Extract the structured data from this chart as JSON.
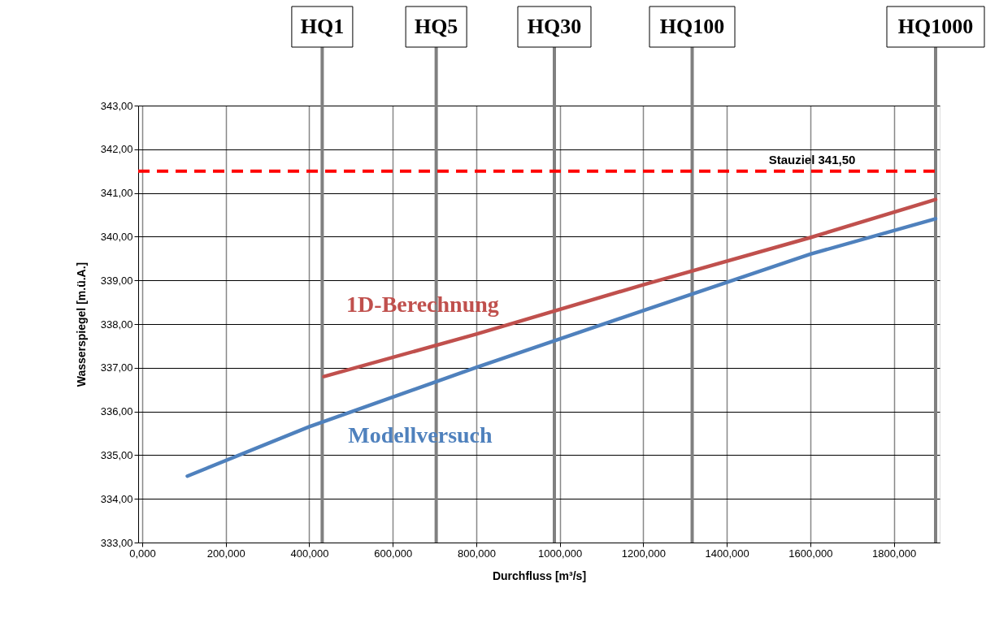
{
  "chart_data": {
    "type": "line",
    "xlabel": "Durchfluss [m³/s]",
    "ylabel": "Wasserspiegel [m.ü.A.]",
    "xlim": [
      0,
      1900
    ],
    "ylim": [
      333,
      343
    ],
    "xticks": [
      {
        "value": 0,
        "label": "0,000"
      },
      {
        "value": 200,
        "label": "200,000"
      },
      {
        "value": 400,
        "label": "400,000"
      },
      {
        "value": 600,
        "label": "600,000"
      },
      {
        "value": 800,
        "label": "800,000"
      },
      {
        "value": 1000,
        "label": "1000,000"
      },
      {
        "value": 1200,
        "label": "1200,000"
      },
      {
        "value": 1400,
        "label": "1400,000"
      },
      {
        "value": 1600,
        "label": "1600,000"
      },
      {
        "value": 1800,
        "label": "1800,000"
      }
    ],
    "yticks": [
      {
        "value": 333,
        "label": "333,00"
      },
      {
        "value": 334,
        "label": "334,00"
      },
      {
        "value": 335,
        "label": "335,00"
      },
      {
        "value": 336,
        "label": "336,00"
      },
      {
        "value": 337,
        "label": "337,00"
      },
      {
        "value": 338,
        "label": "338,00"
      },
      {
        "value": 339,
        "label": "339,00"
      },
      {
        "value": 340,
        "label": "340,00"
      },
      {
        "value": 341,
        "label": "341,00"
      },
      {
        "value": 342,
        "label": "342,00"
      },
      {
        "value": 343,
        "label": "343,00"
      }
    ],
    "grid": true,
    "series": [
      {
        "name": "1D-Berechnung",
        "color": "#c0504d",
        "x": [
          435,
          800,
          1200,
          1600,
          1900
        ],
        "values": [
          336.8,
          337.77,
          338.9,
          339.98,
          340.85
        ]
      },
      {
        "name": "Modellversuch",
        "color": "#4f81bd",
        "x": [
          108,
          400,
          800,
          1200,
          1600,
          1900
        ],
        "values": [
          334.52,
          335.65,
          337.01,
          338.31,
          339.6,
          340.41
        ]
      }
    ],
    "ref_lines": [
      {
        "axis": "x",
        "value": 431,
        "label": "HQ1",
        "color": "#808080"
      },
      {
        "axis": "x",
        "value": 704,
        "label": "HQ5",
        "color": "#808080"
      },
      {
        "axis": "x",
        "value": 987,
        "label": "HQ30",
        "color": "#808080"
      },
      {
        "axis": "x",
        "value": 1317,
        "label": "HQ100",
        "color": "#808080"
      },
      {
        "axis": "x",
        "value": 1900,
        "label": "HQ1000",
        "color": "#808080"
      },
      {
        "axis": "y",
        "value": 341.5,
        "label": "Stauziel 341,50",
        "color": "#ff0000",
        "line_style": "dashed"
      }
    ]
  }
}
